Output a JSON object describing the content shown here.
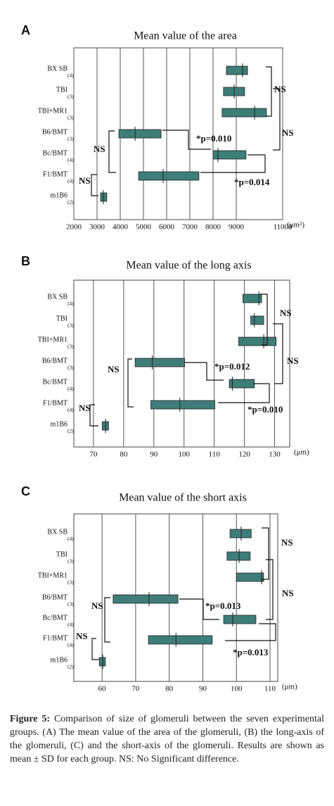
{
  "chart_data": [
    {
      "type": "range-bar",
      "panel": "A",
      "title": "Mean value of the area",
      "unit": "(μm²)",
      "categories": [
        "BX SB",
        "TBI",
        "TBI+MR1",
        "B6/BMT",
        "Bc/BMT",
        "F1/BMT",
        "m1B6"
      ],
      "group_sizes": [
        "(4)",
        "(3)",
        "(3)",
        "(3)",
        "(4)",
        "(4)",
        "(2)"
      ],
      "low": [
        8575,
        8450,
        8390,
        3940,
        8000,
        4790,
        3150
      ],
      "high": [
        9485,
        9360,
        10300,
        5760,
        9420,
        7390,
        3420
      ],
      "mean": [
        9270,
        8910,
        9790,
        4640,
        8210,
        5850,
        3270
      ],
      "color": "#3e7d78",
      "xlim": [
        2000,
        11000
      ],
      "xticks": [
        2000,
        3000,
        4000,
        5000,
        6000,
        7000,
        8000,
        9000,
        11000
      ],
      "grid": true,
      "annotations": [
        "NS",
        "NS",
        "*p=0.010",
        "*p=0.014",
        "NS",
        "NS"
      ]
    },
    {
      "type": "range-bar",
      "panel": "B",
      "title": "Mean value of the long axis",
      "unit": "(μm)",
      "categories": [
        "BX SB",
        "TBI",
        "TBI+MR1",
        "B6/BMT",
        "Bc/BMT",
        "F1/BMT",
        "m1B6"
      ],
      "group_sizes": [
        "(4)",
        "(3)",
        "(3)",
        "(3)",
        "(4)",
        "(4)",
        "(2)"
      ],
      "low": [
        119.5,
        122.1,
        118.1,
        83.8,
        115,
        89,
        72.9
      ],
      "high": [
        125.7,
        126.4,
        130.5,
        100.2,
        123.3,
        110.2,
        75
      ],
      "mean": [
        124.8,
        123.3,
        126.4,
        89.5,
        116,
        98.6,
        74
      ],
      "color": "#3e7d78",
      "xlim": [
        63.5,
        135
      ],
      "xticks": [
        70,
        80,
        90,
        100,
        110,
        120,
        130
      ],
      "grid": true,
      "annotations": [
        "NS",
        "NS",
        "*p=0.012",
        "*p=0.010",
        "NS",
        "NS"
      ]
    },
    {
      "type": "range-bar",
      "panel": "C",
      "title": "Mean value of the short axis",
      "unit": "(μm)",
      "categories": [
        "BX SB",
        "TBI",
        "TBI+MR1",
        "B6/BMT",
        "Bc/BMT",
        "F1/BMT",
        "m1B6"
      ],
      "group_sizes": [
        "(4)",
        "(3)",
        "(3)",
        "(3)",
        "(4)",
        "(4)",
        "(2)"
      ],
      "low": [
        98.1,
        97.2,
        100,
        63.3,
        96.2,
        73.8,
        59.2
      ],
      "high": [
        104.4,
        104.1,
        108.1,
        82.6,
        105.8,
        92.8,
        61
      ],
      "mean": [
        101.4,
        100.8,
        107.5,
        74,
        98.9,
        82,
        60.2
      ],
      "color": "#3e7d78",
      "xlim": [
        51.6,
        112.3
      ],
      "xticks": [
        60,
        70,
        80,
        90,
        100,
        110
      ],
      "grid": true,
      "annotations": [
        "NS",
        "NS",
        "*p=0.013",
        "*p=0.013",
        "NS",
        "NS"
      ]
    }
  ],
  "caption": {
    "label": "Figure 5:",
    "text": "Comparison of size of glomeruli between the seven experimental groups. (A) The mean value of the area of the glomeruli, (B) the long-axis of the glomeruli, (C) and the short-axis of the glomeruli. Results are shown as mean ± SD for each group. NS: No Significant difference."
  }
}
